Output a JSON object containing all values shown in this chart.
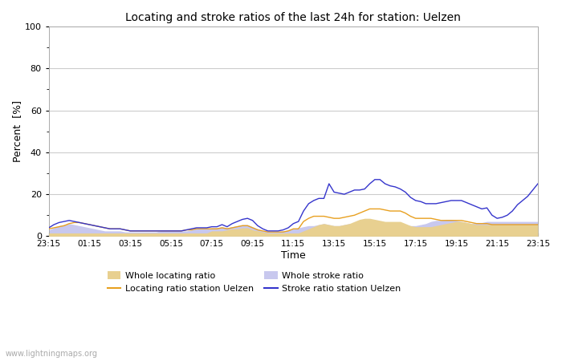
{
  "title": "Locating and stroke ratios of the last 24h for station: Uelzen",
  "xlabel": "Time",
  "ylabel": "Percent  [%]",
  "xlim": [
    0,
    96
  ],
  "ylim": [
    0,
    100
  ],
  "yticks": [
    0,
    20,
    40,
    60,
    80,
    100
  ],
  "ytick_minor": [
    10,
    30,
    50,
    70,
    90
  ],
  "xtick_labels": [
    "23:15",
    "01:15",
    "03:15",
    "05:15",
    "07:15",
    "09:15",
    "11:15",
    "13:15",
    "15:15",
    "17:15",
    "19:15",
    "21:15",
    "23:15"
  ],
  "xtick_positions": [
    0,
    8,
    16,
    24,
    32,
    40,
    48,
    56,
    64,
    72,
    80,
    88,
    96
  ],
  "color_whole_locating": "#e8d090",
  "color_whole_stroke": "#c8c8ee",
  "color_locating_station": "#e8a020",
  "color_stroke_station": "#3535cc",
  "bg_color": "#ffffff",
  "plot_bg_color": "#ffffff",
  "grid_color": "#cccccc",
  "watermark": "www.lightningmaps.org",
  "legend_wl": "Whole locating ratio",
  "legend_ws": "Whole stroke ratio",
  "legend_ls": "Locating ratio station Uelzen",
  "legend_ss": "Stroke ratio station Uelzen",
  "whole_locating": [
    1.5,
    1.5,
    1.5,
    1.5,
    1.5,
    1.5,
    1.5,
    1.5,
    1.5,
    1.5,
    1.5,
    1.5,
    1.5,
    1.5,
    1.5,
    1.5,
    1.5,
    1.5,
    1.5,
    1.5,
    1.5,
    1.5,
    1.5,
    1.5,
    1.5,
    1.5,
    1.5,
    1.5,
    1.5,
    1.5,
    1.5,
    1.5,
    2.5,
    2.5,
    2.5,
    3.0,
    3.5,
    3.5,
    4.0,
    4.0,
    3.0,
    2.5,
    2.0,
    1.5,
    1.5,
    1.5,
    1.5,
    1.5,
    1.5,
    1.5,
    2.5,
    3.5,
    4.5,
    5.5,
    6.0,
    5.5,
    5.0,
    5.0,
    5.5,
    6.0,
    7.0,
    8.0,
    8.5,
    8.5,
    8.0,
    7.5,
    7.0,
    7.0,
    7.0,
    7.0,
    6.0,
    5.0,
    4.5,
    4.5,
    4.5,
    4.5,
    5.0,
    5.5,
    6.0,
    6.5,
    7.0,
    7.0,
    6.5,
    6.0,
    5.5,
    5.5,
    5.5,
    5.5,
    5.5,
    5.5,
    5.5,
    5.5,
    5.5,
    5.5,
    5.5,
    5.5,
    5.5
  ],
  "whole_stroke": [
    3.0,
    4.0,
    5.0,
    5.5,
    6.0,
    5.5,
    5.0,
    4.5,
    4.0,
    3.5,
    3.0,
    2.5,
    2.5,
    2.5,
    2.5,
    2.0,
    2.0,
    2.0,
    2.0,
    2.0,
    2.0,
    2.0,
    2.5,
    2.5,
    2.5,
    2.5,
    2.5,
    2.5,
    3.0,
    3.5,
    3.5,
    3.5,
    4.0,
    4.0,
    4.5,
    4.0,
    4.5,
    5.0,
    5.5,
    5.5,
    4.5,
    3.5,
    2.5,
    2.0,
    2.0,
    2.0,
    2.5,
    3.0,
    3.5,
    4.0,
    4.5,
    5.0,
    5.0,
    5.5,
    6.0,
    5.5,
    5.0,
    5.0,
    5.5,
    6.0,
    6.0,
    6.0,
    6.5,
    6.0,
    5.5,
    5.5,
    5.5,
    6.0,
    6.0,
    6.0,
    5.5,
    5.0,
    5.0,
    5.5,
    6.0,
    7.0,
    7.5,
    7.5,
    8.0,
    8.0,
    7.5,
    7.0,
    6.5,
    6.0,
    6.5,
    6.5,
    7.0,
    7.0,
    7.0,
    7.0,
    7.0,
    7.0,
    7.0,
    7.0,
    7.0,
    7.0,
    7.0
  ],
  "locating_station": [
    3.5,
    4.0,
    4.5,
    5.0,
    6.0,
    6.5,
    6.5,
    6.0,
    5.5,
    5.0,
    4.5,
    4.0,
    3.5,
    3.5,
    3.5,
    3.0,
    2.5,
    2.5,
    2.5,
    2.5,
    2.5,
    2.5,
    2.5,
    2.5,
    2.5,
    2.5,
    2.5,
    3.0,
    3.0,
    3.5,
    3.5,
    3.5,
    3.5,
    3.5,
    4.0,
    3.5,
    4.0,
    4.5,
    5.0,
    5.0,
    4.0,
    3.0,
    2.5,
    2.0,
    2.0,
    2.0,
    2.0,
    2.5,
    3.5,
    3.5,
    7.0,
    8.5,
    9.5,
    9.5,
    9.5,
    9.0,
    8.5,
    8.5,
    9.0,
    9.5,
    10.0,
    11.0,
    12.0,
    13.0,
    13.0,
    13.0,
    12.5,
    12.0,
    12.0,
    12.0,
    11.0,
    9.5,
    8.5,
    8.5,
    8.5,
    8.5,
    8.0,
    7.5,
    7.5,
    7.5,
    7.5,
    7.5,
    7.0,
    6.5,
    6.0,
    6.0,
    6.0,
    5.5,
    5.5,
    5.5,
    5.5,
    5.5,
    5.5,
    5.5,
    5.5,
    5.5,
    5.5
  ],
  "stroke_station": [
    4.0,
    5.5,
    6.5,
    7.0,
    7.5,
    7.0,
    6.5,
    6.0,
    5.5,
    5.0,
    4.5,
    4.0,
    3.5,
    3.5,
    3.5,
    3.0,
    2.5,
    2.5,
    2.5,
    2.5,
    2.5,
    2.5,
    2.5,
    2.5,
    2.5,
    2.5,
    2.5,
    3.0,
    3.5,
    4.0,
    4.0,
    4.0,
    4.5,
    4.5,
    5.5,
    4.5,
    6.0,
    7.0,
    8.0,
    8.5,
    7.5,
    5.0,
    3.5,
    2.5,
    2.5,
    2.5,
    3.0,
    4.0,
    6.0,
    7.0,
    12.0,
    15.5,
    17.0,
    18.0,
    18.0,
    25.0,
    21.0,
    20.5,
    20.0,
    21.0,
    22.0,
    22.0,
    22.5,
    25.0,
    27.0,
    27.0,
    25.0,
    24.0,
    23.5,
    22.5,
    21.0,
    18.5,
    17.0,
    16.5,
    15.5,
    15.5,
    15.5,
    16.0,
    16.5,
    17.0,
    17.0,
    17.0,
    16.0,
    15.0,
    14.0,
    13.0,
    13.5,
    10.0,
    8.5,
    9.0,
    10.0,
    12.0,
    15.0,
    17.0,
    19.0,
    22.0,
    25.0
  ]
}
